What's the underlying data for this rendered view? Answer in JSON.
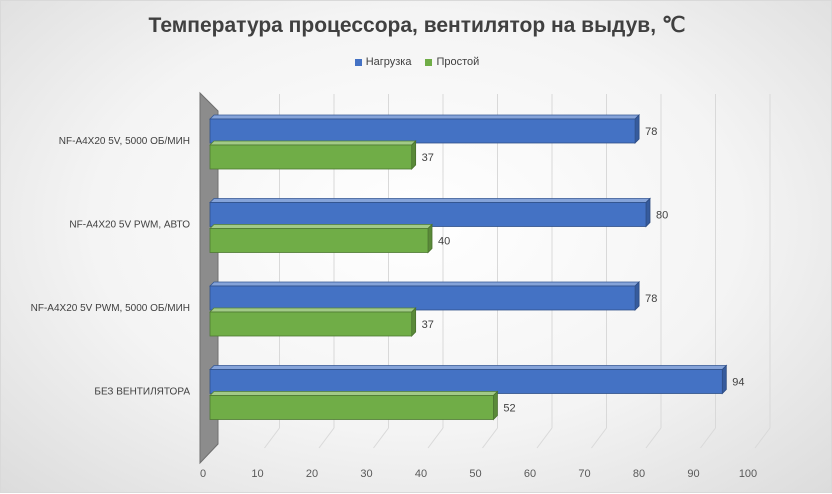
{
  "chart_data": {
    "type": "bar",
    "orientation": "horizontal",
    "style": "3d",
    "title": "Температура процессора, вентилятор на выдув, ℃",
    "categories": [
      "NF-A4X20 5V, 5000 ОБ/МИН",
      "NF-A4X20 5V PWM, АВТО",
      "NF-A4X20 5V PWM, 5000 ОБ/МИН",
      "БЕЗ ВЕНТИЛЯТОРА"
    ],
    "series": [
      {
        "name": "Нагрузка",
        "values": [
          78,
          80,
          78,
          94
        ],
        "color": "#4472c4"
      },
      {
        "name": "Простой",
        "values": [
          37,
          40,
          37,
          52
        ],
        "color": "#70ad47"
      }
    ],
    "xlim": [
      0,
      100
    ],
    "x_ticks": [
      0,
      10,
      20,
      30,
      40,
      50,
      60,
      70,
      80,
      90,
      100
    ],
    "legend_position": "top",
    "grid": true
  }
}
